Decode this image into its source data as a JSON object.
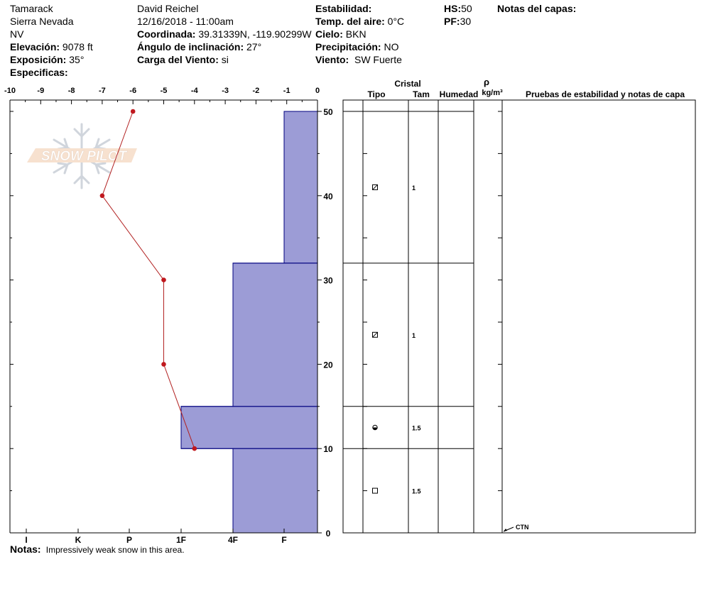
{
  "header": {
    "location": "Tamarack",
    "range": "Sierra Nevada",
    "state": "NV",
    "elevation_label": "Elevación:",
    "elevation_value": "9078 ft",
    "aspect_label": "Exposición:",
    "aspect_value": "35°",
    "specifics_label": "Especificas:",
    "observer": "David Reichel",
    "datetime": "12/16/2018 - 11:00am",
    "coord_label": "Coordinada:",
    "coord_value": "39.31339N, -119.90299W",
    "slope_label": "Ángulo de inclinación:",
    "slope_value": "27°",
    "wind_load_label": "Carga del Viento:",
    "wind_load_value": "si",
    "stability_label": "Estabilidad:",
    "air_temp_label": "Temp. del aire:",
    "air_temp_value": "0°C",
    "sky_label": "Cielo:",
    "sky_value": "BKN",
    "precip_label": "Precipitación:",
    "precip_value": "NO",
    "wind_label": "Viento:",
    "wind_value": "SW Fuerte",
    "hs_label": "HS:",
    "hs_value": "50",
    "pf_label": "PF:",
    "pf_value": "30",
    "layer_notes_label": "Notas del capas:"
  },
  "notes": {
    "label": "Notas:",
    "value": "Impressively weak snow in this area."
  },
  "watermark": "SNOW PILOT",
  "colors": {
    "hardness_fill": "#9c9cd6",
    "hardness_stroke": "#00007f",
    "temp_line": "#b22222",
    "temp_point": "#c0181e"
  },
  "chart_data": {
    "type": "snow_profile",
    "temp_axis": {
      "ticks": [
        "-10",
        "-9",
        "-8",
        "-7",
        "-6",
        "-5",
        "-4",
        "-3",
        "-2",
        "-1",
        "0"
      ],
      "range": [
        -10,
        0
      ]
    },
    "height_axis": {
      "ticks": [
        "50",
        "40",
        "30",
        "20",
        "10",
        "0"
      ],
      "range": [
        0,
        50
      ],
      "unit": "cm"
    },
    "hardness_axis": {
      "ticks": [
        "I",
        "K",
        "P",
        "1F",
        "4F",
        "F"
      ]
    },
    "temperature_profile": [
      {
        "height": 50,
        "temp": -6
      },
      {
        "height": 40,
        "temp": -7
      },
      {
        "height": 30,
        "temp": -5
      },
      {
        "height": 20,
        "temp": -5
      },
      {
        "height": 10,
        "temp": -4
      }
    ],
    "layers": [
      {
        "top": 50,
        "bottom": 32,
        "hardness": "F",
        "crystal_type": "faceted",
        "size": "1"
      },
      {
        "top": 32,
        "bottom": 15,
        "hardness": "4F",
        "crystal_type": "faceted",
        "size": "1"
      },
      {
        "top": 15,
        "bottom": 10,
        "hardness": "1F",
        "crystal_type": "depth-hoar-rounding",
        "size": "1.5"
      },
      {
        "top": 10,
        "bottom": 0,
        "hardness": "4F",
        "crystal_type": "faceted-square",
        "size": "1.5"
      }
    ],
    "layer_table": {
      "group_header": "Cristal",
      "col_type": "Tipo",
      "col_size": "Tam",
      "col_moisture": "Humedad",
      "col_density_symbol": "ρ",
      "col_density_unit": "kg/m³",
      "col_tests": "Pruebas de estabilidad y notas de capa"
    },
    "tests": [
      {
        "height": 0,
        "label": "CTN"
      }
    ]
  }
}
